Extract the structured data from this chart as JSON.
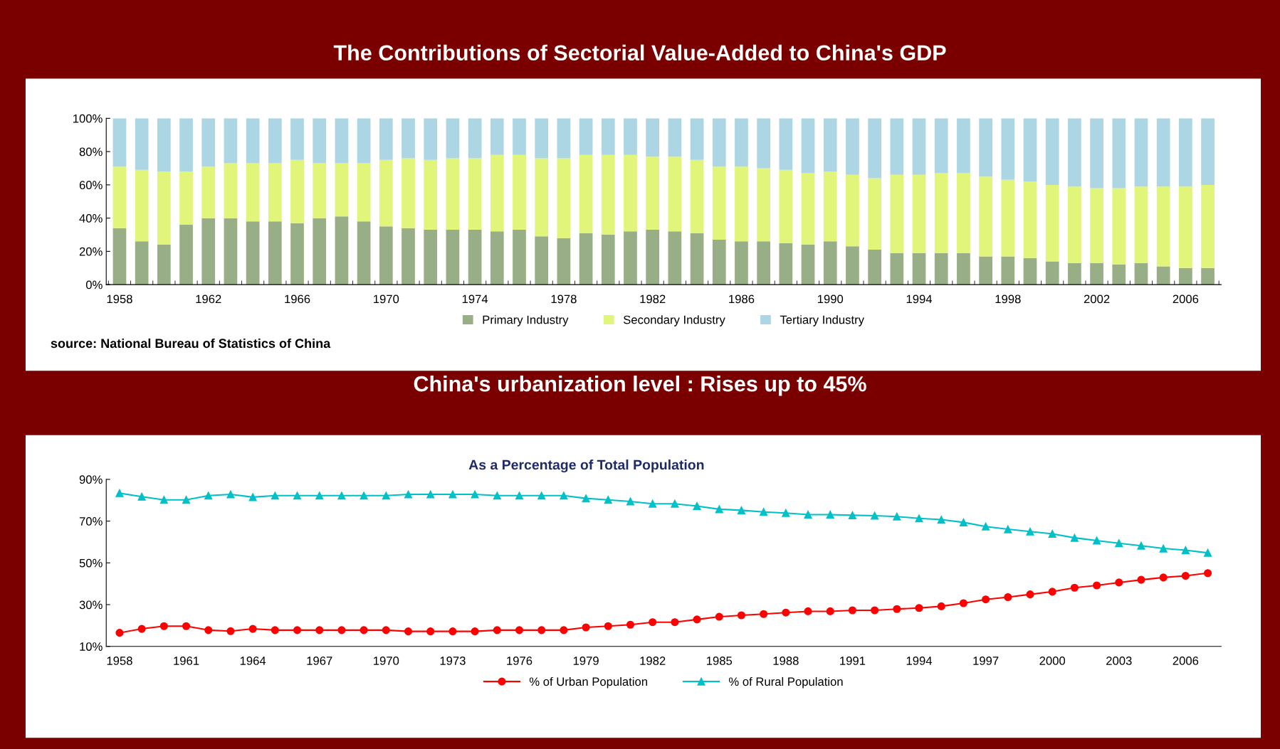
{
  "chart_data": [
    {
      "type": "bar",
      "title": "The Contributions of Sectorial Value-Added to China's GDP",
      "stacked": true,
      "categories": [
        "1958",
        null,
        null,
        null,
        "1962",
        null,
        null,
        null,
        "1966",
        null,
        null,
        null,
        "1970",
        null,
        null,
        null,
        "1974",
        null,
        null,
        null,
        "1978",
        null,
        null,
        null,
        "1982",
        null,
        null,
        null,
        "1986",
        null,
        null,
        null,
        "1990",
        null,
        null,
        null,
        "1994",
        null,
        null,
        null,
        "1998",
        null,
        null,
        null,
        "2002",
        null,
        null,
        null,
        "2006",
        null
      ],
      "series": [
        {
          "name": "Primary Industry",
          "color": "#98ae87",
          "values": [
            34,
            26,
            24,
            36,
            40,
            40,
            38,
            38,
            37,
            40,
            41,
            38,
            35,
            34,
            33,
            33,
            33,
            32,
            33,
            29,
            28,
            31,
            30,
            32,
            33,
            32,
            31,
            27,
            26,
            26,
            25,
            24,
            26,
            23,
            21,
            19,
            19,
            19,
            19,
            17,
            17,
            16,
            14,
            13,
            13,
            12,
            13,
            11,
            10,
            10
          ]
        },
        {
          "name": "Secondary Industry",
          "color": "#e0f57a",
          "values": [
            37,
            43,
            44,
            32,
            31,
            33,
            35,
            35,
            38,
            33,
            32,
            35,
            40,
            42,
            42,
            43,
            43,
            46,
            45,
            47,
            48,
            47,
            48,
            46,
            44,
            45,
            44,
            44,
            45,
            44,
            44,
            43,
            42,
            43,
            43,
            47,
            47,
            48,
            48,
            48,
            46,
            46,
            46,
            46,
            45,
            46,
            46,
            48,
            49,
            50
          ]
        },
        {
          "name": "Tertiary Industry",
          "color": "#acd6e3",
          "values": [
            29,
            31,
            32,
            32,
            29,
            27,
            27,
            27,
            25,
            27,
            27,
            27,
            25,
            24,
            25,
            24,
            24,
            22,
            22,
            24,
            24,
            22,
            22,
            22,
            23,
            23,
            25,
            29,
            29,
            30,
            31,
            33,
            32,
            34,
            36,
            34,
            34,
            33,
            33,
            35,
            37,
            38,
            40,
            41,
            42,
            42,
            41,
            41,
            41,
            40
          ]
        }
      ],
      "ylim": [
        0,
        100
      ],
      "yticks": [
        {
          "value": 0,
          "label": "0%"
        },
        {
          "value": 20,
          "label": "20%"
        },
        {
          "value": 40,
          "label": "40%"
        },
        {
          "value": 60,
          "label": "60%"
        },
        {
          "value": 80,
          "label": "80%"
        },
        {
          "value": 100,
          "label": "100%"
        }
      ],
      "grid": false,
      "legend": "bottom",
      "annotations": [
        "source: National Bureau of Statistics of China"
      ]
    },
    {
      "type": "line",
      "title": "China's urbanization level : Rises up to 45%",
      "categories": [
        "1958",
        null,
        null,
        "1961",
        null,
        null,
        "1964",
        null,
        null,
        "1967",
        null,
        null,
        "1970",
        null,
        null,
        "1973",
        null,
        null,
        "1976",
        null,
        null,
        "1979",
        null,
        null,
        "1982",
        null,
        null,
        "1985",
        null,
        null,
        "1988",
        null,
        null,
        "1991",
        null,
        null,
        "1994",
        null,
        null,
        "1997",
        null,
        null,
        "2000",
        null,
        null,
        "2003",
        null,
        null,
        "2006",
        null
      ],
      "series": [
        {
          "name": "% of Urban Population",
          "color": "#ff0000",
          "marker": "circle",
          "values": [
            16.5,
            18.4,
            19.7,
            19.7,
            17.8,
            17.3,
            18.4,
            17.8,
            17.8,
            17.8,
            17.8,
            17.8,
            17.8,
            17.2,
            17.2,
            17.2,
            17.2,
            17.8,
            17.8,
            17.8,
            17.8,
            19.1,
            19.7,
            20.4,
            21.6,
            21.6,
            22.9,
            24.2,
            24.9,
            25.5,
            26.2,
            26.8,
            26.8,
            27.3,
            27.3,
            27.9,
            28.4,
            29.2,
            30.7,
            32.5,
            33.6,
            34.9,
            36.2,
            38.1,
            39.2,
            40.6,
            41.9,
            43.0,
            43.8,
            45.1
          ]
        },
        {
          "name": "% of Rural Population",
          "color": "#00c0c8",
          "marker": "triangle",
          "values": [
            83.4,
            81.7,
            80.2,
            80.2,
            82.2,
            82.8,
            81.5,
            82.2,
            82.2,
            82.2,
            82.2,
            82.2,
            82.2,
            82.8,
            82.8,
            82.8,
            82.8,
            82.2,
            82.2,
            82.2,
            82.2,
            80.9,
            80.2,
            79.4,
            78.3,
            78.3,
            77.2,
            75.7,
            75.2,
            74.4,
            73.9,
            73.1,
            73.1,
            72.8,
            72.6,
            72.2,
            71.3,
            70.7,
            69.4,
            67.4,
            66.1,
            65.0,
            63.9,
            62.0,
            60.7,
            59.4,
            58.2,
            56.9,
            56.1,
            54.8
          ]
        }
      ],
      "ylim": [
        10,
        90
      ],
      "yticks": [
        {
          "value": 10,
          "label": "10%"
        },
        {
          "value": 30,
          "label": "30%"
        },
        {
          "value": 50,
          "label": "50%"
        },
        {
          "value": 70,
          "label": "70%"
        },
        {
          "value": 90,
          "label": "90%"
        }
      ],
      "grid": false,
      "legend": "bottom",
      "annotations": [
        "As a Percentage of Total Population"
      ]
    }
  ]
}
